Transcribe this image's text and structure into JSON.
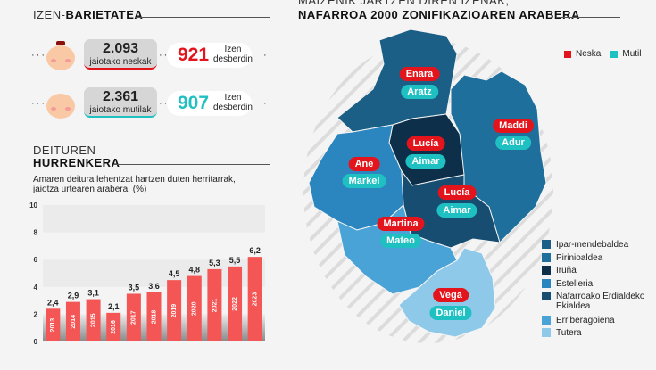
{
  "variety": {
    "title_light": "IZEN-",
    "title_bold": "BARIETATEA",
    "girls": {
      "count": "2.093",
      "label": "jaiotako neskak",
      "unique": "921",
      "unique_label_1": "Izen",
      "unique_label_2": "desberdin",
      "color": "#e3141b"
    },
    "boys": {
      "count": "2.361",
      "label": "jaiotako mutilak",
      "unique": "907",
      "unique_label_1": "Izen",
      "unique_label_2": "desberdin",
      "color": "#1fc0c2"
    }
  },
  "surnames": {
    "title_light": "DEITUREN",
    "title_bold": "HURRENKERA",
    "subtitle_1": "Amaren deitura lehentzat hartzen duten herritarrak,",
    "subtitle_2": "jaiotza urtearen arabera. (%)"
  },
  "chart_data": {
    "type": "bar",
    "categories": [
      "2013",
      "2014",
      "2015",
      "2016",
      "2017",
      "2018",
      "2019",
      "2020",
      "2021",
      "2022",
      "2023"
    ],
    "values": [
      2.4,
      2.9,
      3.1,
      2.1,
      3.5,
      3.6,
      4.5,
      4.8,
      5.3,
      5.5,
      6.2
    ],
    "value_labels": [
      "2,4",
      "2,9",
      "3,1",
      "2,1",
      "3,5",
      "3,6",
      "4,5",
      "4,8",
      "5,3",
      "5,5",
      "6,2"
    ],
    "yticks": [
      "0",
      "2",
      "4",
      "6",
      "8",
      "10"
    ],
    "ylim": [
      0,
      10
    ],
    "bar_color": "#f45555"
  },
  "map": {
    "title_light": "MAIZENIK JARTZEN DIREN IZENAK,",
    "title_bold": "NAFARROA 2000 ZONIFIKAZIOAREN ARABERA",
    "key": {
      "girl": "Neska",
      "boy": "Mutil",
      "girl_color": "#e3141b",
      "boy_color": "#1fc0c2"
    },
    "zones": [
      {
        "name": "Ipar-mendebaldea",
        "color": "#1b5f86",
        "girl": "Enara",
        "boy": "Aratz"
      },
      {
        "name": "Pirinioaldea",
        "color": "#1f6f9c",
        "girl": "Maddi",
        "boy": "Adur"
      },
      {
        "name": "Iruña",
        "color": "#0d2f4a",
        "girl": "Lucía",
        "boy": "Aimar"
      },
      {
        "name": "Estelleria",
        "color": "#2b86bf",
        "girl": "Ane",
        "boy": "Markel"
      },
      {
        "name": "Nafarroako Erdialdeko Ekialdea",
        "color": "#164d70",
        "girl": "Lucía",
        "boy": "Aimar"
      },
      {
        "name": "Erriberagoiena",
        "color": "#4aa3d6",
        "girl": "Martina",
        "boy": "Mateo"
      },
      {
        "name": "Tutera",
        "color": "#8ec9ea",
        "girl": "Vega",
        "boy": "Daniel"
      }
    ]
  }
}
